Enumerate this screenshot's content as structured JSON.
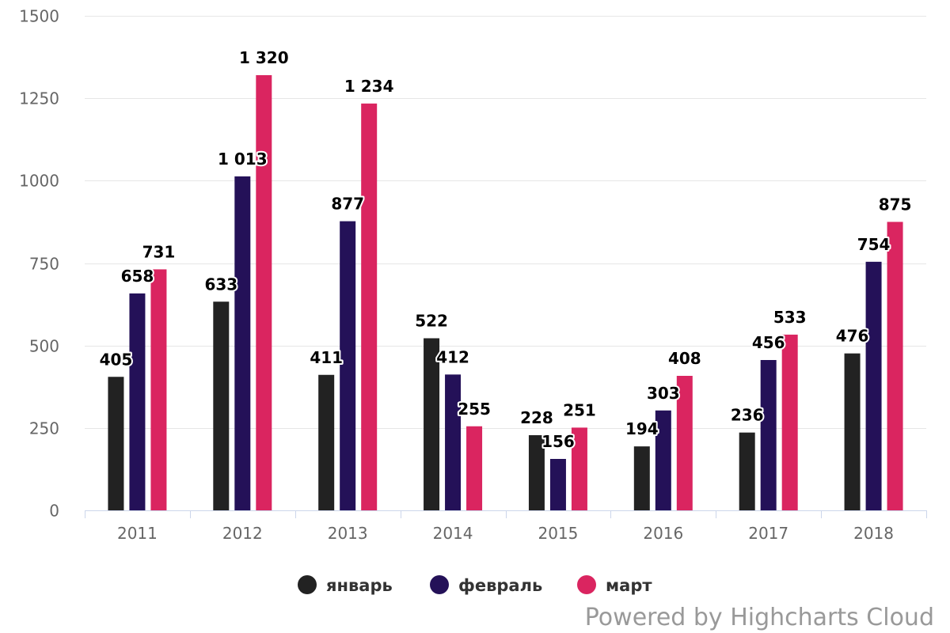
{
  "chart_data": {
    "type": "bar",
    "categories": [
      "2011",
      "2012",
      "2013",
      "2014",
      "2015",
      "2016",
      "2017",
      "2018"
    ],
    "series": [
      {
        "name": "январь",
        "color": "#222222",
        "values": [
          405,
          633,
          411,
          522,
          228,
          194,
          236,
          476
        ],
        "labels": [
          "405",
          "633",
          "411",
          "522",
          "228",
          "194",
          "236",
          "476"
        ]
      },
      {
        "name": "февраль",
        "color": "#241158",
        "values": [
          658,
          1013,
          877,
          412,
          156,
          303,
          456,
          754
        ],
        "labels": [
          "658",
          "1 013",
          "877",
          "412",
          "156",
          "303",
          "456",
          "754"
        ]
      },
      {
        "name": "март",
        "color": "#da2560",
        "values": [
          731,
          1320,
          1234,
          255,
          251,
          408,
          533,
          875
        ],
        "labels": [
          "731",
          "1 320",
          "1 234",
          "255",
          "251",
          "408",
          "533",
          "875"
        ]
      }
    ],
    "yticks": [
      0,
      250,
      500,
      750,
      1000,
      1250,
      1500
    ],
    "ytick_labels": [
      "0",
      "250",
      "500",
      "750",
      "1000",
      "1250",
      "1500"
    ],
    "ylim": [
      0,
      1500
    ],
    "grid": true,
    "legend_position": "bottom-center"
  },
  "credits": "Powered by Highcharts Cloud"
}
